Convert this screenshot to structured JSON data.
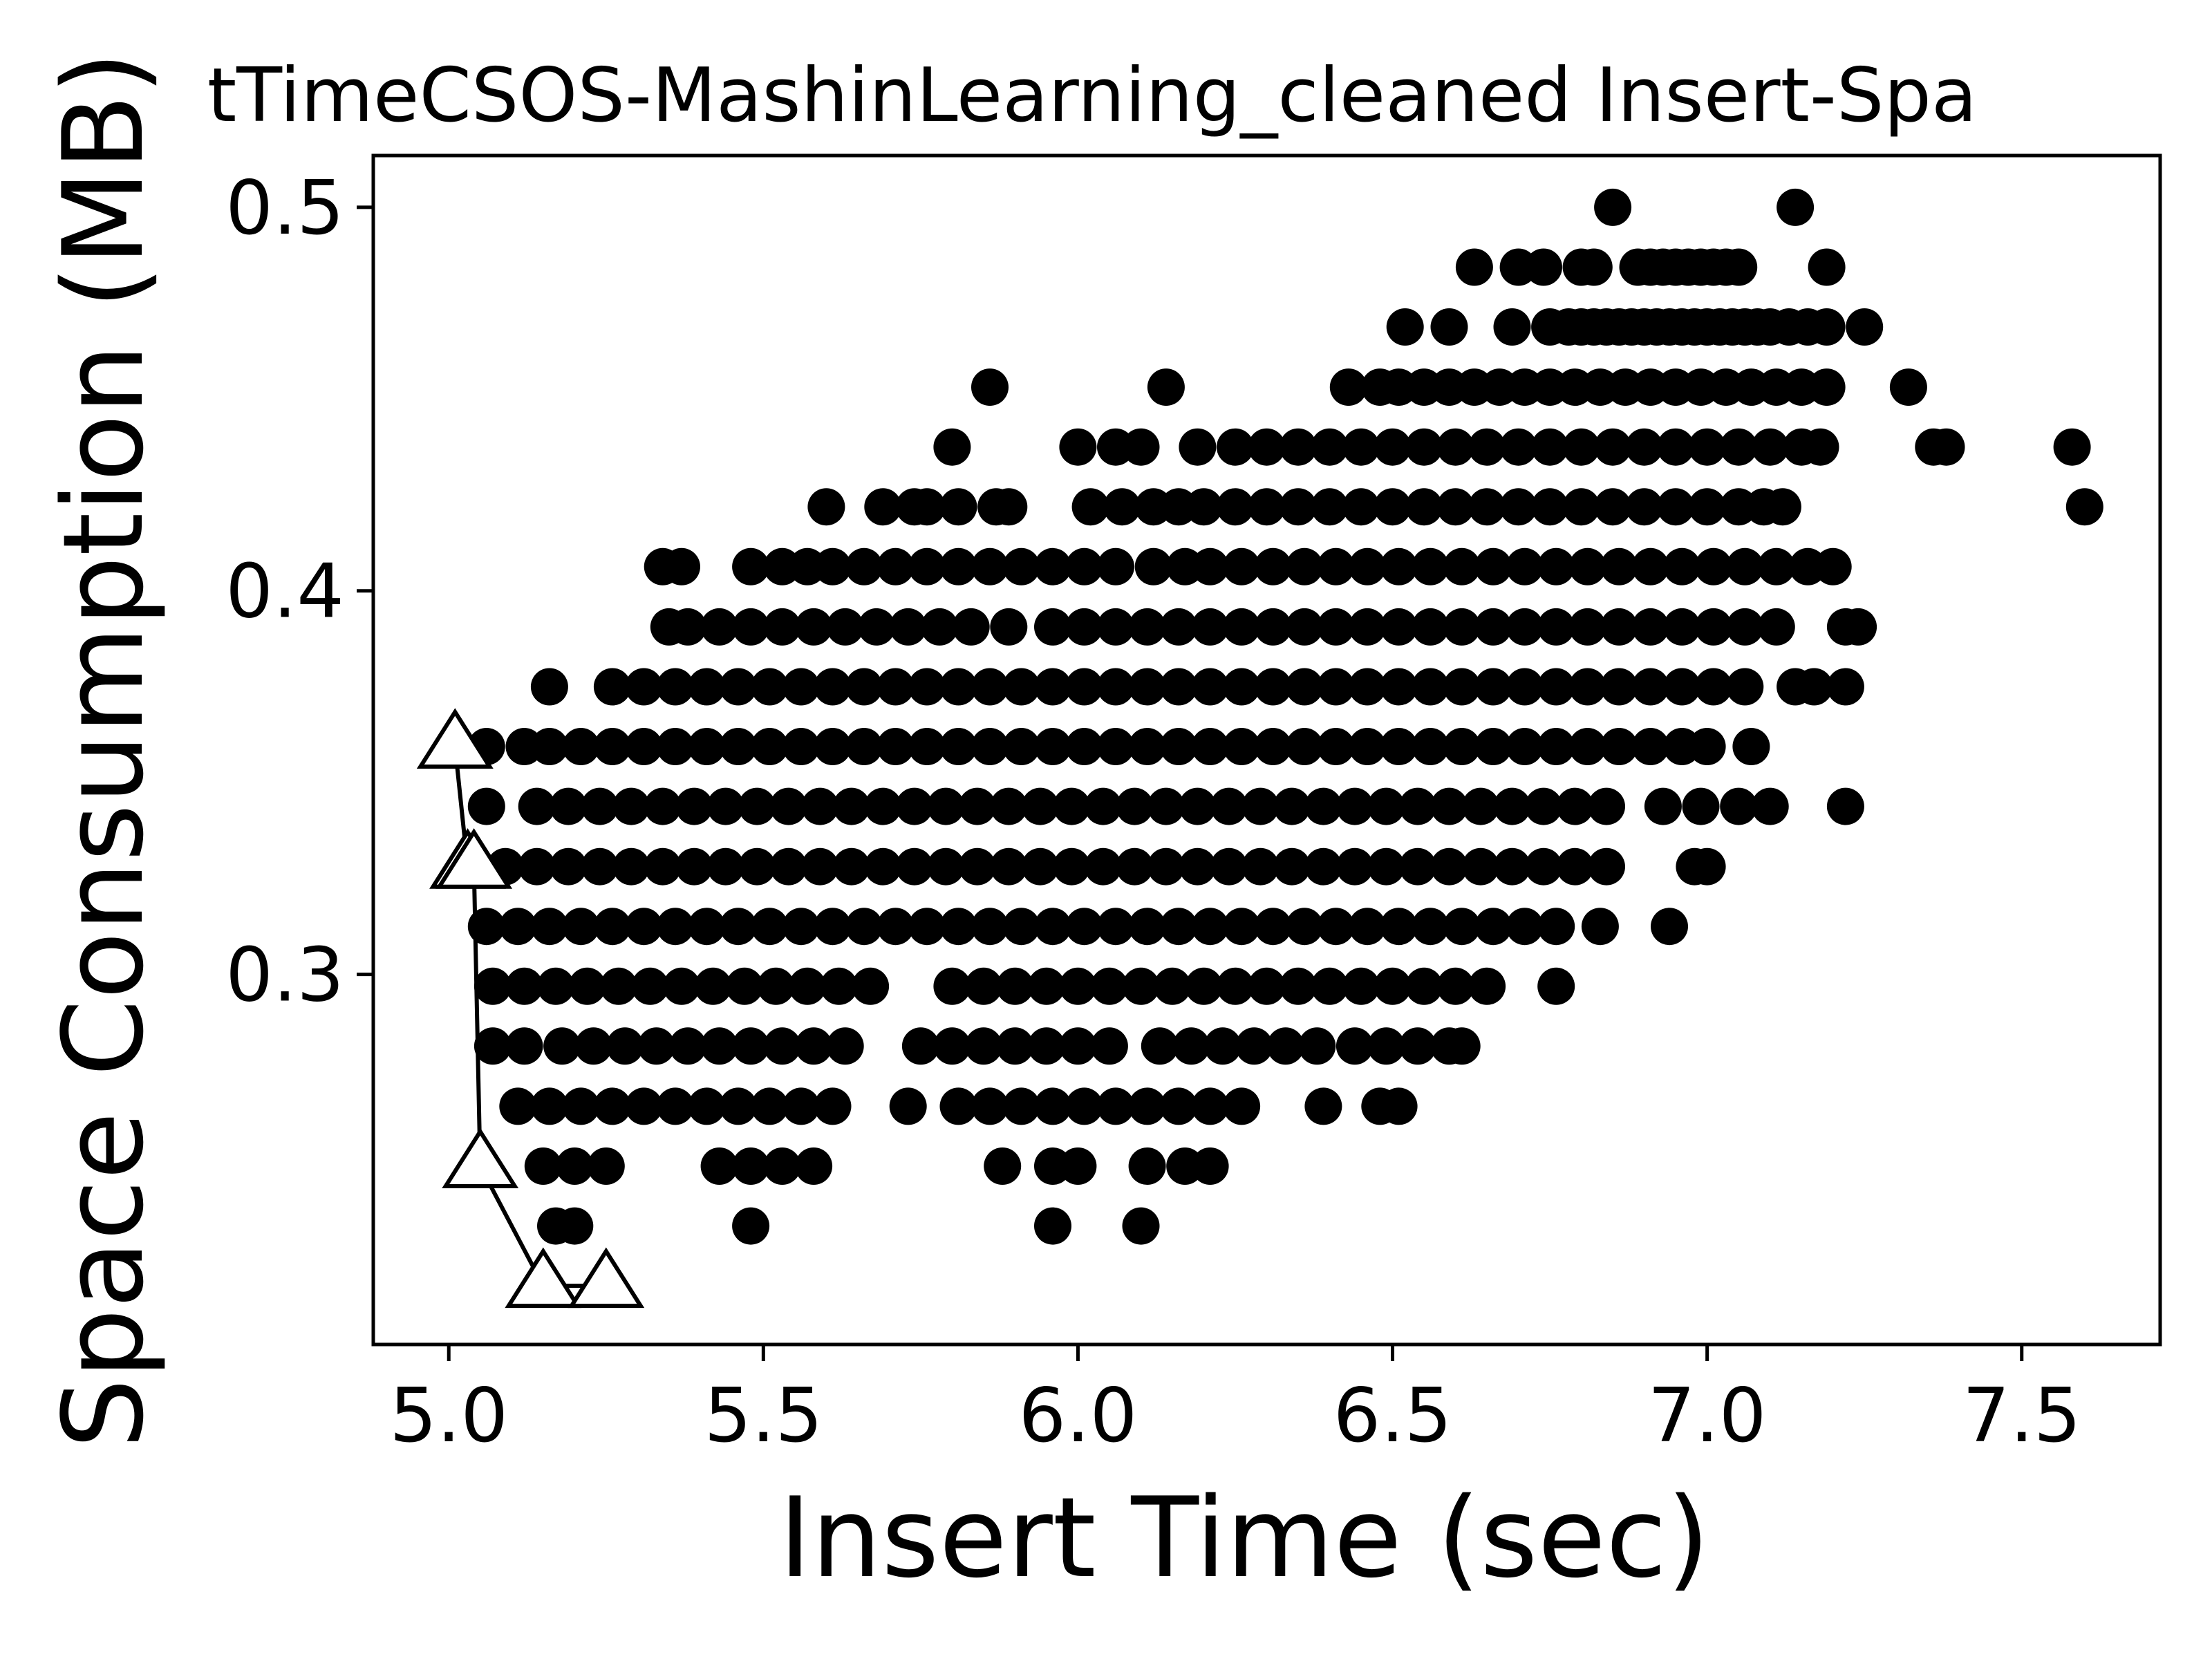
{
  "chart_data": {
    "type": "scatter",
    "title": "tTimeCSOS-MashinLearning_cleaned Insert-Spa",
    "xlabel": "Insert Time (sec)",
    "ylabel": "Space Consumption (MB)",
    "xlim": [
      4.88,
      7.72
    ],
    "ylim": [
      0.2035,
      0.5135
    ],
    "x_ticks": [
      5.0,
      5.5,
      6.0,
      6.5,
      7.0,
      7.5
    ],
    "x_tick_labels": [
      "5.0",
      "5.5",
      "6.0",
      "6.5",
      "7.0",
      "7.5"
    ],
    "y_ticks": [
      0.3,
      0.4,
      0.5
    ],
    "y_tick_labels": [
      "0.3",
      "0.4",
      "0.5"
    ],
    "grid": false,
    "colors": {
      "points": "#000000",
      "frontier_fill": "#ffffff",
      "frontier_stroke": "#000000"
    },
    "series": [
      {
        "marker": "circle",
        "bands": [
          {
            "y": 0.5,
            "x": [
              6.85,
              7.14
            ]
          },
          {
            "y": 0.4844,
            "x": [
              6.63,
              6.7,
              6.74,
              6.8,
              6.82,
              6.89,
              6.91,
              6.93,
              6.95,
              6.97,
              6.99,
              7.01,
              7.03,
              7.05,
              7.19
            ]
          },
          {
            "y": 0.4688,
            "x": [
              6.52,
              6.59,
              6.69,
              6.75,
              6.78,
              6.8,
              6.82,
              6.84,
              6.86,
              6.88,
              6.9,
              6.92,
              6.94,
              6.96,
              6.98,
              7.0,
              7.02,
              7.04,
              7.06,
              7.08,
              7.1,
              7.13,
              7.16,
              7.19,
              7.25
            ]
          },
          {
            "y": 0.4531,
            "x": [
              5.86,
              6.14,
              6.43,
              6.48,
              6.51,
              6.55,
              6.59,
              6.63,
              6.67,
              6.71,
              6.75,
              6.79,
              6.83,
              6.87,
              6.91,
              6.95,
              6.99,
              7.03,
              7.07,
              7.11,
              7.15,
              7.19,
              7.32
            ]
          },
          {
            "y": 0.4375,
            "x": [
              5.8,
              6.0,
              6.06,
              6.1,
              6.19,
              6.25,
              6.3,
              6.35,
              6.4,
              6.45,
              6.5,
              6.55,
              6.6,
              6.65,
              6.7,
              6.75,
              6.8,
              6.85,
              6.9,
              6.95,
              7.0,
              7.05,
              7.1,
              7.15,
              7.18,
              7.36,
              7.38,
              7.58
            ]
          },
          {
            "y": 0.4219,
            "x": [
              5.6,
              5.69,
              5.74,
              5.76,
              5.81,
              5.87,
              5.89,
              6.02,
              6.07,
              6.12,
              6.16,
              6.2,
              6.25,
              6.3,
              6.35,
              6.4,
              6.45,
              6.5,
              6.55,
              6.6,
              6.65,
              6.7,
              6.75,
              6.8,
              6.85,
              6.9,
              6.95,
              7.0,
              7.05,
              7.09,
              7.12,
              7.6
            ]
          },
          {
            "y": 0.4063,
            "x": [
              5.34,
              5.37,
              5.48,
              5.53,
              5.57,
              5.61,
              5.66,
              5.71,
              5.76,
              5.81,
              5.86,
              5.91,
              5.96,
              6.01,
              6.06,
              6.12,
              6.17,
              6.21,
              6.26,
              6.31,
              6.36,
              6.41,
              6.46,
              6.51,
              6.56,
              6.61,
              6.66,
              6.71,
              6.76,
              6.81,
              6.86,
              6.91,
              6.96,
              7.01,
              7.06,
              7.11,
              7.16,
              7.2
            ]
          },
          {
            "y": 0.3906,
            "x": [
              5.35,
              5.38,
              5.43,
              5.48,
              5.53,
              5.58,
              5.63,
              5.68,
              5.73,
              5.78,
              5.83,
              5.89,
              5.96,
              6.01,
              6.06,
              6.11,
              6.16,
              6.21,
              6.26,
              6.31,
              6.36,
              6.41,
              6.46,
              6.51,
              6.56,
              6.61,
              6.66,
              6.71,
              6.76,
              6.81,
              6.86,
              6.91,
              6.96,
              7.01,
              7.06,
              7.11,
              7.22,
              7.24
            ]
          },
          {
            "y": 0.375,
            "x": [
              5.16,
              5.26,
              5.31,
              5.36,
              5.41,
              5.46,
              5.51,
              5.56,
              5.61,
              5.66,
              5.71,
              5.76,
              5.81,
              5.86,
              5.91,
              5.96,
              6.01,
              6.06,
              6.11,
              6.16,
              6.21,
              6.26,
              6.31,
              6.36,
              6.41,
              6.46,
              6.51,
              6.56,
              6.61,
              6.66,
              6.71,
              6.76,
              6.81,
              6.86,
              6.91,
              6.96,
              7.01,
              7.06,
              7.14,
              7.17,
              7.22
            ]
          },
          {
            "y": 0.3594,
            "x": [
              5.06,
              5.12,
              5.16,
              5.21,
              5.26,
              5.31,
              5.36,
              5.41,
              5.46,
              5.51,
              5.56,
              5.61,
              5.66,
              5.71,
              5.76,
              5.81,
              5.86,
              5.91,
              5.96,
              6.01,
              6.06,
              6.11,
              6.16,
              6.21,
              6.26,
              6.31,
              6.36,
              6.41,
              6.46,
              6.51,
              6.56,
              6.61,
              6.66,
              6.71,
              6.76,
              6.81,
              6.86,
              6.91,
              6.96,
              7.0,
              7.07
            ]
          },
          {
            "y": 0.3438,
            "x": [
              5.06,
              5.14,
              5.19,
              5.24,
              5.29,
              5.34,
              5.39,
              5.44,
              5.49,
              5.54,
              5.59,
              5.64,
              5.69,
              5.74,
              5.79,
              5.84,
              5.89,
              5.94,
              5.99,
              6.04,
              6.09,
              6.14,
              6.19,
              6.24,
              6.29,
              6.34,
              6.39,
              6.44,
              6.49,
              6.54,
              6.59,
              6.64,
              6.69,
              6.74,
              6.79,
              6.84,
              6.93,
              6.99,
              7.05,
              7.1,
              7.22
            ]
          },
          {
            "y": 0.3281,
            "x": [
              5.09,
              5.14,
              5.19,
              5.24,
              5.29,
              5.34,
              5.39,
              5.44,
              5.49,
              5.54,
              5.59,
              5.64,
              5.69,
              5.74,
              5.79,
              5.84,
              5.89,
              5.94,
              5.99,
              6.04,
              6.09,
              6.14,
              6.19,
              6.24,
              6.29,
              6.34,
              6.39,
              6.44,
              6.49,
              6.54,
              6.59,
              6.64,
              6.69,
              6.74,
              6.79,
              6.84,
              6.98,
              7.0
            ]
          },
          {
            "y": 0.3125,
            "x": [
              5.06,
              5.11,
              5.16,
              5.21,
              5.26,
              5.31,
              5.36,
              5.41,
              5.46,
              5.51,
              5.56,
              5.61,
              5.66,
              5.71,
              5.76,
              5.81,
              5.86,
              5.91,
              5.96,
              6.01,
              6.06,
              6.11,
              6.16,
              6.21,
              6.26,
              6.31,
              6.36,
              6.41,
              6.46,
              6.51,
              6.56,
              6.61,
              6.66,
              6.71,
              6.76,
              6.83,
              6.94
            ]
          },
          {
            "y": 0.2969,
            "x": [
              5.07,
              5.12,
              5.17,
              5.22,
              5.27,
              5.32,
              5.37,
              5.42,
              5.47,
              5.52,
              5.57,
              5.62,
              5.67,
              5.8,
              5.85,
              5.9,
              5.95,
              6.0,
              6.05,
              6.1,
              6.15,
              6.2,
              6.25,
              6.3,
              6.35,
              6.4,
              6.45,
              6.5,
              6.55,
              6.6,
              6.65,
              6.76
            ]
          },
          {
            "y": 0.2813,
            "x": [
              5.07,
              5.12,
              5.18,
              5.23,
              5.28,
              5.33,
              5.38,
              5.43,
              5.48,
              5.53,
              5.58,
              5.63,
              5.75,
              5.8,
              5.85,
              5.9,
              5.95,
              6.0,
              6.05,
              6.13,
              6.18,
              6.23,
              6.28,
              6.33,
              6.38,
              6.44,
              6.49,
              6.54,
              6.59,
              6.61
            ]
          },
          {
            "y": 0.2656,
            "x": [
              5.11,
              5.16,
              5.21,
              5.26,
              5.31,
              5.36,
              5.41,
              5.46,
              5.51,
              5.56,
              5.61,
              5.73,
              5.81,
              5.86,
              5.91,
              5.96,
              6.01,
              6.06,
              6.11,
              6.16,
              6.21,
              6.26,
              6.39,
              6.48,
              6.51
            ]
          },
          {
            "y": 0.25,
            "x": [
              5.15,
              5.2,
              5.25,
              5.43,
              5.48,
              5.53,
              5.58,
              5.88,
              5.96,
              6.0,
              6.11,
              6.17,
              6.21
            ]
          },
          {
            "y": 0.2344,
            "x": [
              5.17,
              5.2,
              5.48,
              5.96,
              6.1
            ]
          }
        ]
      },
      {
        "marker": "triangle",
        "connected": true,
        "x": [
          5.01,
          5.03,
          5.04,
          5.05,
          5.15,
          5.25
        ],
        "y": [
          0.3594,
          0.3281,
          0.3281,
          0.25,
          0.2188,
          0.2188
        ]
      }
    ]
  }
}
